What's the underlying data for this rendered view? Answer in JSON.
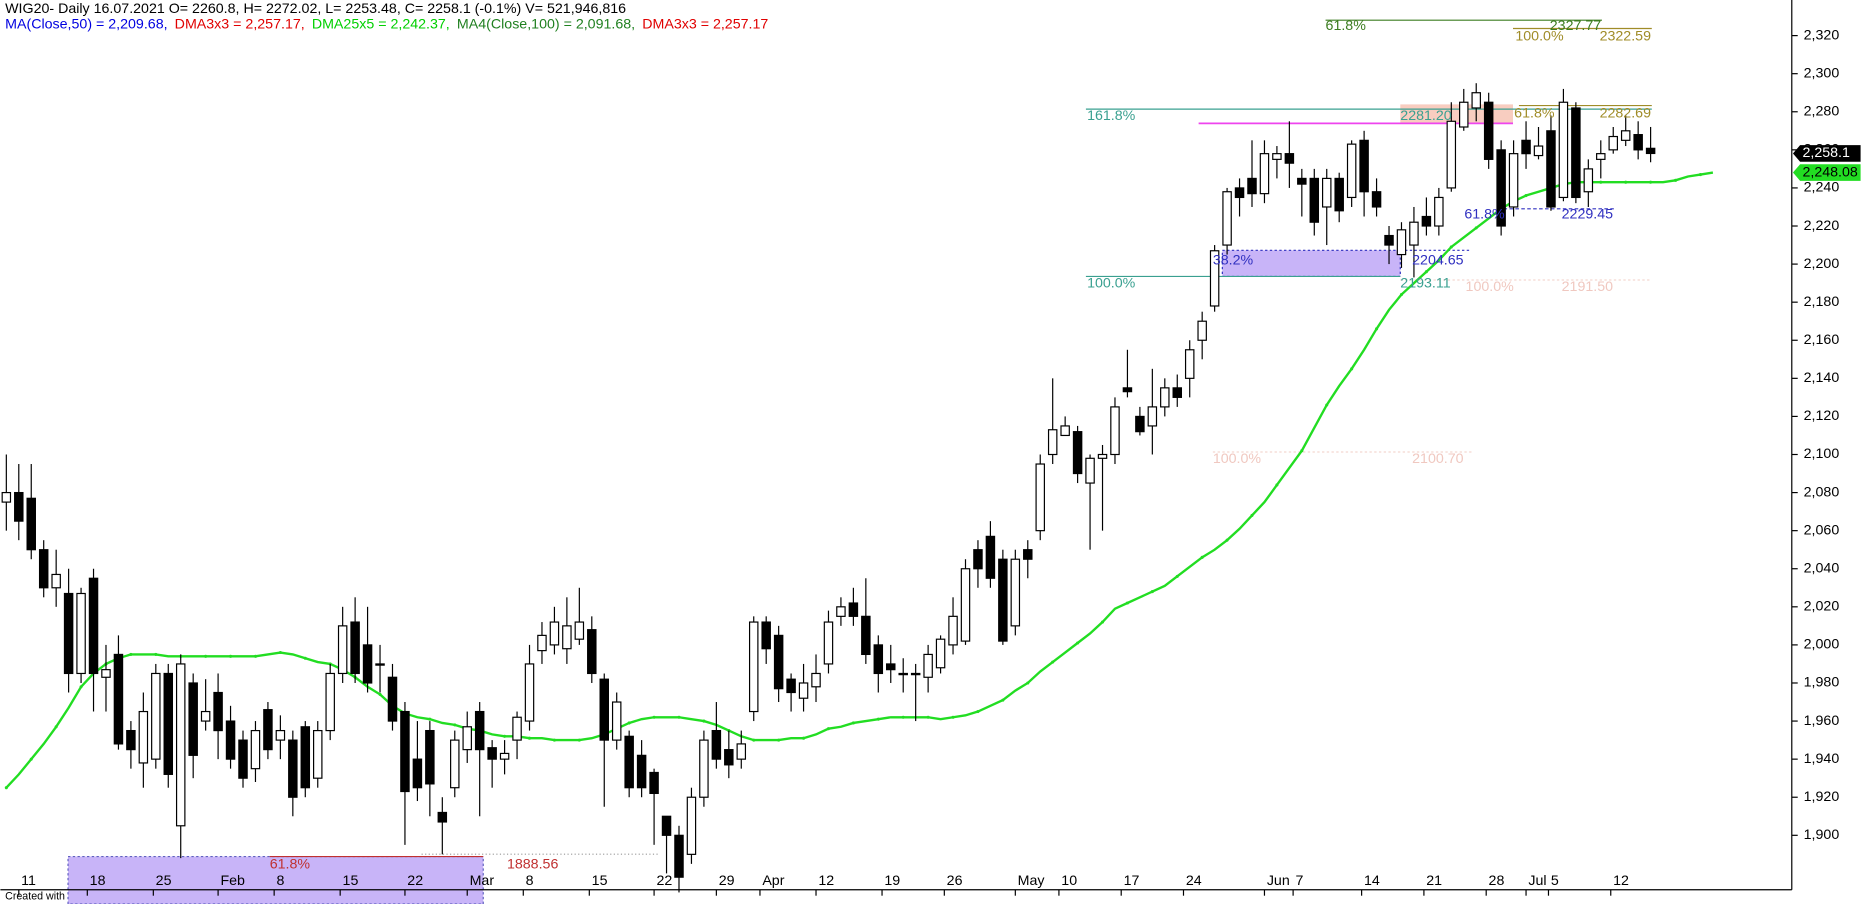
{
  "chart_data": {
    "type": "candlestick",
    "title": "WIG20- Daily 16.07.2021 O= 2260.8, H= 2272.02, L= 2253.48, C= 2258.1 (-0.1%) V= 521,946,816",
    "indicators": [
      {
        "text": "MA(Close,50) = 2,209.68,",
        "color": "#0000e0"
      },
      {
        "text": "DMA3x3 = 2,257.17,",
        "color": "#e00000"
      },
      {
        "text": "DMA25x5 = 2,242.37,",
        "color": "#00d000"
      },
      {
        "text": "MA4(Close,100) = 2,091.68,",
        "color": "#208020"
      },
      {
        "text": "DMA3x3 = 2,257.17",
        "color": "#e00000"
      }
    ],
    "open": [
      2075,
      2080,
      2077,
      2050,
      2030,
      2027,
      1985,
      2035,
      1983,
      1995,
      1955,
      1938,
      1940,
      1985,
      1905,
      1980,
      1960,
      1975,
      1960,
      1950,
      1935,
      1966,
      1950,
      1950,
      1957,
      1930,
      1955,
      1985,
      2012,
      2000,
      1990,
      1983,
      1965,
      1940,
      1955,
      1912,
      1925,
      1945,
      1965,
      1946,
      1940,
      1950,
      1960,
      1997,
      2000,
      1998,
      2003,
      2008,
      1982,
      1950,
      1952,
      1942,
      1933,
      1910,
      1900,
      1890,
      1920,
      1955,
      1945,
      1940,
      1965,
      2012,
      2005,
      1982,
      1972,
      1978,
      1990,
      2015,
      2022,
      2015,
      2000,
      1990,
      1985,
      1985,
      1983,
      1988,
      2000,
      2002,
      2050,
      2057,
      2045,
      2010,
      2050,
      2060,
      2100,
      2110,
      2112,
      2085,
      2098,
      2100,
      2135,
      2120,
      2115,
      2125,
      2135,
      2140,
      2160,
      2178,
      2210,
      2240,
      2245,
      2237,
      2255,
      2258,
      2245,
      2245,
      2230,
      2245,
      2235,
      2265,
      2238,
      2215,
      2205,
      2210,
      2225,
      2220,
      2240,
      2272,
      2282,
      2285,
      2260,
      2230,
      2265,
      2257,
      2270,
      2235,
      2282,
      2238,
      2255,
      2260,
      2265,
      2268,
      2260.8
    ],
    "high": [
      2100,
      2095,
      2095,
      2055,
      2050,
      2040,
      2030,
      2040,
      2000,
      2005,
      1960,
      1975,
      1990,
      1990,
      1995,
      1985,
      1982,
      1985,
      1968,
      1955,
      1960,
      1970,
      1963,
      1955,
      1960,
      1960,
      1990,
      2020,
      2025,
      2020,
      2000,
      1990,
      1970,
      1960,
      1960,
      1920,
      1955,
      1965,
      1970,
      1950,
      1950,
      1965,
      2000,
      2012,
      2020,
      2025,
      2030,
      2015,
      1985,
      1975,
      1955,
      1950,
      1935,
      1910,
      1905,
      1925,
      1955,
      1970,
      1955,
      1955,
      2015,
      2015,
      2010,
      1985,
      1990,
      1995,
      2018,
      2025,
      2030,
      2035,
      2005,
      2000,
      1993,
      1990,
      2000,
      2005,
      2025,
      2045,
      2055,
      2065,
      2050,
      2050,
      2055,
      2100,
      2140,
      2120,
      2115,
      2100,
      2105,
      2130,
      2155,
      2125,
      2145,
      2140,
      2142,
      2160,
      2175,
      2210,
      2240,
      2245,
      2265,
      2265,
      2262,
      2275,
      2250,
      2250,
      2250,
      2248,
      2265,
      2270,
      2245,
      2220,
      2222,
      2230,
      2235,
      2240,
      2285,
      2292,
      2295,
      2290,
      2265,
      2265,
      2275,
      2272,
      2278,
      2292,
      2285,
      2255,
      2265,
      2272,
      2278,
      2275,
      2272.02
    ],
    "low": [
      2060,
      2055,
      2045,
      2025,
      2020,
      1975,
      1980,
      1965,
      1965,
      1945,
      1935,
      1925,
      1935,
      1925,
      1888,
      1930,
      1955,
      1940,
      1935,
      1925,
      1928,
      1940,
      1940,
      1910,
      1920,
      1925,
      1950,
      1980,
      1980,
      1975,
      1975,
      1955,
      1895,
      1918,
      1910,
      1890,
      1920,
      1938,
      1910,
      1925,
      1932,
      1940,
      1955,
      1990,
      1995,
      1990,
      2000,
      1980,
      1915,
      1945,
      1920,
      1920,
      1895,
      1880,
      1870,
      1885,
      1915,
      1935,
      1930,
      1935,
      1960,
      1990,
      1970,
      1965,
      1965,
      1970,
      1985,
      2010,
      2010,
      1990,
      1975,
      1980,
      1975,
      1960,
      1975,
      1985,
      1995,
      2000,
      2030,
      2030,
      2000,
      2005,
      2035,
      2055,
      2095,
      2110,
      2085,
      2050,
      2060,
      2095,
      2130,
      2110,
      2100,
      2120,
      2125,
      2130,
      2150,
      2175,
      2205,
      2225,
      2230,
      2232,
      2245,
      2240,
      2225,
      2215,
      2210,
      2222,
      2230,
      2225,
      2225,
      2200,
      2198,
      2193,
      2215,
      2215,
      2238,
      2270,
      2275,
      2250,
      2215,
      2225,
      2250,
      2255,
      2228,
      2233,
      2232,
      2230,
      2245,
      2258,
      2262,
      2255,
      2253.48
    ],
    "close": [
      2080,
      2065,
      2050,
      2030,
      2037,
      1985,
      2027,
      1985,
      1987,
      1948,
      1945,
      1965,
      1985,
      1932,
      1990,
      1942,
      1965,
      1955,
      1940,
      1930,
      1955,
      1945,
      1955,
      1920,
      1925,
      1955,
      1985,
      2010,
      1985,
      1980,
      1990,
      1960,
      1923,
      1925,
      1927,
      1907,
      1950,
      1957,
      1945,
      1940,
      1943,
      1962,
      1990,
      2005,
      2012,
      2010,
      2012,
      1985,
      1950,
      1970,
      1925,
      1925,
      1922,
      1900,
      1878,
      1920,
      1950,
      1940,
      1937,
      1948,
      2012,
      1998,
      1977,
      1975,
      1980,
      1985,
      2012,
      2020,
      2015,
      1995,
      1985,
      1987,
      1985,
      1985,
      1995,
      2003,
      2015,
      2040,
      2040,
      2035,
      2002,
      2045,
      2045,
      2095,
      2113,
      2115,
      2090,
      2098,
      2100,
      2125,
      2133,
      2112,
      2125,
      2135,
      2130,
      2155,
      2170,
      2207,
      2238,
      2235,
      2237,
      2258,
      2258,
      2253,
      2242,
      2222,
      2245,
      2228,
      2263,
      2238,
      2230,
      2210,
      2218,
      2222,
      2220,
      2235,
      2275,
      2285,
      2290,
      2255,
      2220,
      2258,
      2258,
      2262,
      2230,
      2285,
      2235,
      2250,
      2258,
      2267,
      2270,
      2260,
      2258.1
    ],
    "overlay": {
      "color": "#22dd22",
      "values": [
        1925,
        1932,
        1940,
        1948,
        1957,
        1967,
        1978,
        1985,
        1990,
        1993,
        1995,
        1995,
        1995,
        1994,
        1994,
        1994,
        1994,
        1994,
        1994,
        1994,
        1994,
        1995,
        1996,
        1995,
        1993,
        1991,
        1990,
        1987,
        1983,
        1978,
        1974,
        1968,
        1964,
        1962,
        1961,
        1959,
        1958,
        1956,
        1955,
        1953,
        1952,
        1952,
        1951,
        1951,
        1950,
        1950,
        1950,
        1951,
        1953,
        1956,
        1959,
        1961,
        1962,
        1962,
        1962,
        1961,
        1960,
        1958,
        1955,
        1952,
        1950,
        1950,
        1950,
        1951,
        1951,
        1953,
        1956,
        1957,
        1959,
        1960,
        1961,
        1962,
        1962,
        1962,
        1962,
        1961,
        1962,
        1963,
        1965,
        1968,
        1971,
        1976,
        1980,
        1986,
        1991,
        1996,
        2001,
        2006,
        2012,
        2019,
        2022,
        2025,
        2028,
        2031,
        2036,
        2041,
        2046,
        2050,
        2055,
        2061,
        2068,
        2075,
        2084,
        2093,
        2102,
        2114,
        2126,
        2136,
        2145,
        2155,
        2166,
        2176,
        2184,
        2190,
        2196,
        2202,
        2209,
        2214,
        2219,
        2224,
        2229,
        2233,
        2236,
        2238,
        2240,
        2242,
        2243,
        2243,
        2243,
        2243,
        2243,
        2243,
        2243,
        2243,
        2244,
        2246,
        2247,
        2248.08
      ]
    },
    "ylim": [
      1871.4,
      2338.7
    ],
    "yticks": [
      {
        "value": 1900,
        "label": "1,900"
      },
      {
        "value": 1920,
        "label": "1,920"
      },
      {
        "value": 1940,
        "label": "1,940"
      },
      {
        "value": 1960,
        "label": "1,960"
      },
      {
        "value": 1980,
        "label": "1,980"
      },
      {
        "value": 2000,
        "label": "2,000"
      },
      {
        "value": 2020,
        "label": "2,020"
      },
      {
        "value": 2040,
        "label": "2,040"
      },
      {
        "value": 2060,
        "label": "2,060"
      },
      {
        "value": 2080,
        "label": "2,080"
      },
      {
        "value": 2100,
        "label": "2,100"
      },
      {
        "value": 2120,
        "label": "2,120"
      },
      {
        "value": 2140,
        "label": "2,140"
      },
      {
        "value": 2160,
        "label": "2,160"
      },
      {
        "value": 2180,
        "label": "2,180"
      },
      {
        "value": 2200,
        "label": "2,200"
      },
      {
        "value": 2220,
        "label": "2,220"
      },
      {
        "value": 2240,
        "label": "2,240"
      },
      {
        "value": 2260,
        "label": "2,260"
      },
      {
        "value": 2280,
        "label": "2,280"
      },
      {
        "value": 2300,
        "label": "2,300"
      },
      {
        "value": 2320,
        "label": "2,320"
      }
    ],
    "xticks": [
      {
        "value": 1,
        "label": "11"
      },
      {
        "value": 6.5,
        "label": "18"
      },
      {
        "value": 11.8,
        "label": "25"
      },
      {
        "value": 17,
        "label": "Feb"
      },
      {
        "value": 21.5,
        "label": "8"
      },
      {
        "value": 26.8,
        "label": "15"
      },
      {
        "value": 32,
        "label": "22"
      },
      {
        "value": 37,
        "label": "Mar"
      },
      {
        "value": 41.5,
        "label": "8"
      },
      {
        "value": 46.8,
        "label": "15"
      },
      {
        "value": 52,
        "label": "22"
      },
      {
        "value": 57,
        "label": "29"
      },
      {
        "value": 60.5,
        "label": "Apr"
      },
      {
        "value": 65,
        "label": "12"
      },
      {
        "value": 70.3,
        "label": "19"
      },
      {
        "value": 75.3,
        "label": "26"
      },
      {
        "value": 81,
        "label": "May"
      },
      {
        "value": 84.5,
        "label": "10"
      },
      {
        "value": 89.5,
        "label": "17"
      },
      {
        "value": 94.5,
        "label": "24"
      },
      {
        "value": 101,
        "label": "Jun"
      },
      {
        "value": 103.3,
        "label": "7"
      },
      {
        "value": 108.8,
        "label": "14"
      },
      {
        "value": 113.8,
        "label": "21"
      },
      {
        "value": 118.8,
        "label": "28"
      },
      {
        "value": 122,
        "label": "Jul"
      },
      {
        "value": 123.8,
        "label": "5"
      },
      {
        "value": 128.8,
        "label": "12"
      }
    ],
    "last_price": {
      "value": 2258.1,
      "label": "2,258.1"
    },
    "overlay_last": {
      "value": 2248.08,
      "label": "2,248.08"
    },
    "annotations": [
      "61.8%",
      "2327.77",
      "100.0%",
      "2322.59",
      "161.8%",
      "2281.20",
      "61.8%",
      "2282.69",
      "38.2%",
      "2204.65",
      "100.0%",
      "2193.11",
      "100.0%",
      "2191.50",
      "61.8%",
      "2229.45",
      "100.0%",
      "2100.70",
      "61.8%",
      "1888.56"
    ],
    "footer": "Created with"
  }
}
